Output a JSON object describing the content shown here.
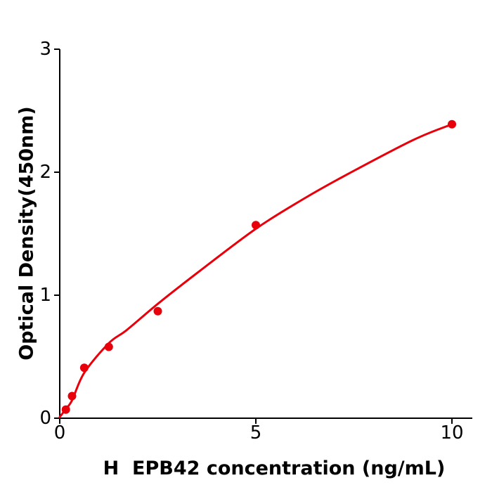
{
  "figure": {
    "background": "#ffffff"
  },
  "chart_data": {
    "type": "scatter",
    "title": "",
    "xlabel": "H  EPB42 concentration (ng/mL)",
    "ylabel": "Optical Density(450nm)",
    "xlim": [
      0,
      10.52
    ],
    "ylim": [
      0,
      3
    ],
    "xticks": [
      0,
      5,
      10
    ],
    "yticks": [
      0,
      1,
      2,
      3
    ],
    "grid": false,
    "legend_position": "none",
    "series": [
      {
        "marker": "circle",
        "marker_radius_px": 6,
        "color": "#e8000b",
        "points": [
          {
            "x": 0.156,
            "y": 0.07
          },
          {
            "x": 0.313,
            "y": 0.18
          },
          {
            "x": 0.625,
            "y": 0.41
          },
          {
            "x": 1.25,
            "y": 0.58
          },
          {
            "x": 2.5,
            "y": 0.87
          },
          {
            "x": 5,
            "y": 1.57
          },
          {
            "x": 10,
            "y": 2.39
          }
        ],
        "fit_curve": [
          [
            0,
            0.01
          ],
          [
            0.156,
            0.075
          ],
          [
            0.313,
            0.145
          ],
          [
            0.625,
            0.37
          ],
          [
            1.25,
            0.61
          ],
          [
            1.7,
            0.715
          ],
          [
            2.5,
            0.93
          ],
          [
            3.5,
            1.18
          ],
          [
            5,
            1.54
          ],
          [
            6.2,
            1.78
          ],
          [
            7.2,
            1.96
          ],
          [
            9.0,
            2.26
          ],
          [
            10,
            2.39
          ]
        ]
      }
    ],
    "colors": {
      "axis": "#000000",
      "text": "#000000",
      "curve": "#e8000b"
    }
  }
}
